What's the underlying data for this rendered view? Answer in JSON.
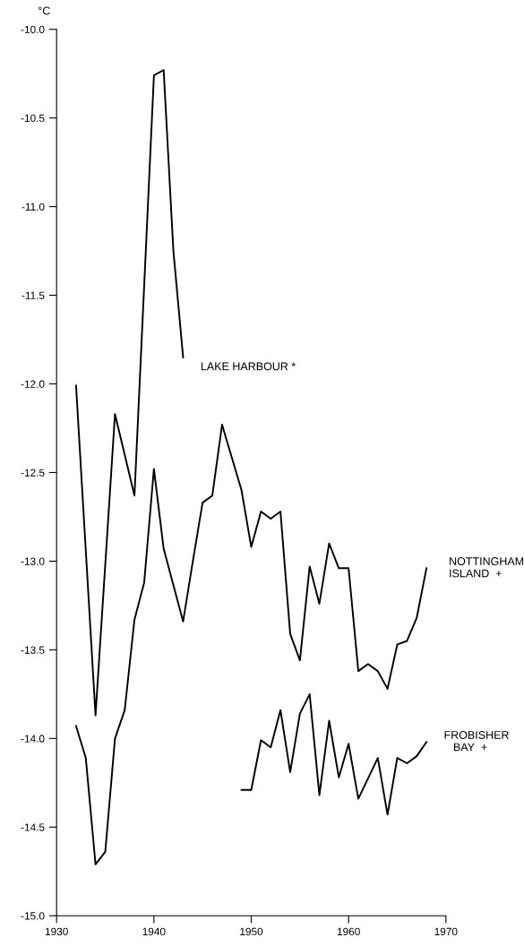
{
  "chart_data": {
    "type": "line",
    "ylabel": "°C",
    "series": [
      {
        "name": "LAKE HARBOUR *",
        "color": "#000000",
        "x": [
          1932,
          1934,
          1936,
          1938,
          1940,
          1941,
          1942,
          1943
        ],
        "values": [
          -12.01,
          -13.87,
          -12.17,
          -12.63,
          -10.26,
          -10.23,
          -11.25,
          -11.85
        ]
      },
      {
        "name": "NOTTINGHAM\nISLAND  +",
        "color": "#000000",
        "x": [
          1932,
          1933,
          1934,
          1935,
          1936,
          1937,
          1938,
          1939,
          1940,
          1941,
          1943,
          1944,
          1945,
          1946,
          1947,
          1949,
          1950,
          1951,
          1952,
          1953,
          1954,
          1955,
          1956,
          1957,
          1958,
          1959,
          1960,
          1961,
          1962,
          1963,
          1964,
          1965,
          1966,
          1967,
          1968
        ],
        "values": [
          -13.93,
          -14.11,
          -14.71,
          -14.64,
          -14.0,
          -13.84,
          -13.33,
          -13.12,
          -12.48,
          -12.93,
          -13.34,
          -13.0,
          -12.67,
          -12.63,
          -12.23,
          -12.6,
          -12.92,
          -12.72,
          -12.76,
          -12.72,
          -13.41,
          -13.56,
          -13.03,
          -13.24,
          -12.9,
          -13.04,
          -13.04,
          -13.62,
          -13.58,
          -13.62,
          -13.72,
          -13.47,
          -13.45,
          -13.32,
          -13.04
        ]
      },
      {
        "name": "FROBISHER\n   BAY  +",
        "color": "#000000",
        "x": [
          1949,
          1950,
          1951,
          1952,
          1953,
          1954,
          1955,
          1956,
          1957,
          1958,
          1959,
          1960,
          1961,
          1963,
          1964,
          1965,
          1966,
          1967,
          1968
        ],
        "values": [
          -14.29,
          -14.29,
          -14.01,
          -14.05,
          -13.84,
          -14.19,
          -13.86,
          -13.75,
          -14.32,
          -13.9,
          -14.22,
          -14.03,
          -14.34,
          -14.11,
          -14.43,
          -14.11,
          -14.14,
          -14.1,
          -14.02
        ]
      }
    ],
    "xlim": [
      1930,
      1970
    ],
    "xticks": [
      1930,
      1940,
      1950,
      1960,
      1970
    ],
    "ylim": [
      -15.0,
      -10.0
    ],
    "yticks": [
      {
        "value": -15,
        "label": "-15.0"
      },
      -14.5,
      {
        "value": -14,
        "label": "-14.0"
      },
      -13.5,
      {
        "value": -13,
        "label": "-13.0"
      },
      -12.5,
      {
        "value": -12,
        "label": "-12.0"
      },
      -11.5,
      {
        "value": -11,
        "label": "-11.0"
      },
      -10.5,
      {
        "value": -10,
        "label": "-10.0"
      }
    ],
    "grid": false,
    "legend": false,
    "marker": "none",
    "line_style": "solid"
  }
}
